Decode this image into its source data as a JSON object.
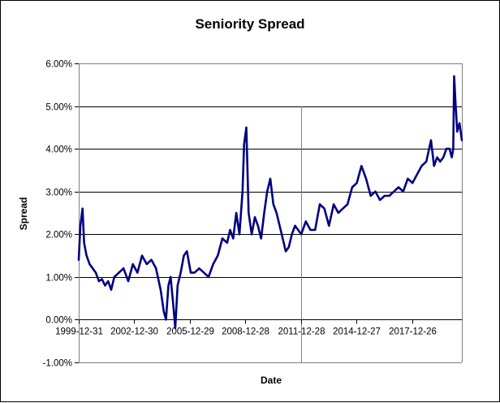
{
  "chart_data": {
    "type": "line",
    "title": "Seniority Spread",
    "xlabel": "Date",
    "ylabel": "Spread",
    "ylim": [
      -0.01,
      0.06
    ],
    "y_ticks": [
      -0.01,
      0,
      0.01,
      0.02,
      0.03,
      0.04,
      0.05,
      0.06
    ],
    "y_tick_labels": [
      "-1.00%",
      "0.00%",
      "1.00%",
      "2.00%",
      "3.00%",
      "4.00%",
      "5.00%",
      "6.00%"
    ],
    "x_tick_labels": [
      "1999-12-31",
      "2002-12-30",
      "2005-12-29",
      "2008-12-28",
      "2011-12-28",
      "2014-12-27",
      "2017-12-26"
    ],
    "x_tick_dates": [
      "1999-12-31",
      "2002-12-30",
      "2005-12-29",
      "2008-12-28",
      "2011-12-28",
      "2014-12-27",
      "2017-12-26"
    ],
    "xlim": [
      "1999-12-31",
      "2020-08-31"
    ],
    "grid": "horizontal",
    "legend": "none",
    "colors": {
      "line": "#000080",
      "grid": "#000000",
      "axis": "#808080"
    },
    "series": [
      {
        "x": [
          "1999-12-31",
          "2000-02-01",
          "2000-03-15",
          "2000-04-15",
          "2000-06-01",
          "2000-08-01",
          "2000-10-01",
          "2000-12-01",
          "2001-02-01",
          "2001-04-01",
          "2001-06-01",
          "2001-08-01",
          "2001-10-01",
          "2001-12-01",
          "2002-03-01",
          "2002-06-01",
          "2002-09-01",
          "2002-12-01",
          "2003-03-01",
          "2003-06-01",
          "2003-09-01",
          "2003-12-01",
          "2004-03-01",
          "2004-06-01",
          "2004-08-01",
          "2004-09-15",
          "2004-11-01",
          "2004-12-15",
          "2005-02-01",
          "2005-03-15",
          "2005-05-01",
          "2005-07-01",
          "2005-09-01",
          "2005-11-01",
          "2006-01-15",
          "2006-04-01",
          "2006-07-01",
          "2006-10-01",
          "2007-01-01",
          "2007-04-01",
          "2007-07-01",
          "2007-10-01",
          "2008-01-01",
          "2008-03-01",
          "2008-05-01",
          "2008-07-01",
          "2008-09-01",
          "2008-11-01",
          "2008-12-01",
          "2009-01-15",
          "2009-03-01",
          "2009-05-01",
          "2009-07-01",
          "2009-09-01",
          "2009-11-01",
          "2010-01-01",
          "2010-03-01",
          "2010-05-01",
          "2010-07-01",
          "2010-09-01",
          "2010-11-01",
          "2011-01-01",
          "2011-03-01",
          "2011-05-01",
          "2011-07-01",
          "2011-09-01",
          "2011-11-01",
          "2012-01-01",
          "2012-04-01",
          "2012-07-01",
          "2012-10-01",
          "2013-01-01",
          "2013-04-01",
          "2013-07-01",
          "2013-10-01",
          "2014-01-01",
          "2014-04-01",
          "2014-07-01",
          "2014-10-01",
          "2015-01-01",
          "2015-04-01",
          "2015-07-01",
          "2015-10-01",
          "2016-01-01",
          "2016-04-01",
          "2016-07-01",
          "2016-10-01",
          "2017-01-01",
          "2017-04-01",
          "2017-07-01",
          "2017-10-01",
          "2018-01-01",
          "2018-04-01",
          "2018-07-01",
          "2018-10-01",
          "2019-01-01",
          "2019-03-01",
          "2019-05-01",
          "2019-07-01",
          "2019-09-01",
          "2019-11-01",
          "2020-01-01",
          "2020-02-15",
          "2020-03-15",
          "2020-04-01",
          "2020-05-01",
          "2020-06-01",
          "2020-07-15",
          "2020-08-31"
        ],
        "y": [
          0.014,
          0.022,
          0.026,
          0.018,
          0.015,
          0.013,
          0.012,
          0.011,
          0.009,
          0.0095,
          0.008,
          0.009,
          0.007,
          0.01,
          0.011,
          0.012,
          0.009,
          0.013,
          0.011,
          0.015,
          0.013,
          0.014,
          0.012,
          0.007,
          0.002,
          0.0,
          0.008,
          0.01,
          0.004,
          -0.002,
          0.008,
          0.011,
          0.015,
          0.016,
          0.011,
          0.011,
          0.012,
          0.011,
          0.01,
          0.013,
          0.015,
          0.019,
          0.018,
          0.021,
          0.019,
          0.025,
          0.02,
          0.03,
          0.041,
          0.045,
          0.025,
          0.02,
          0.024,
          0.022,
          0.019,
          0.025,
          0.03,
          0.033,
          0.027,
          0.025,
          0.022,
          0.019,
          0.016,
          0.017,
          0.02,
          0.022,
          0.021,
          0.02,
          0.023,
          0.021,
          0.021,
          0.027,
          0.026,
          0.022,
          0.027,
          0.025,
          0.026,
          0.027,
          0.031,
          0.032,
          0.036,
          0.033,
          0.029,
          0.03,
          0.028,
          0.029,
          0.029,
          0.03,
          0.031,
          0.03,
          0.033,
          0.032,
          0.034,
          0.036,
          0.037,
          0.042,
          0.036,
          0.038,
          0.037,
          0.038,
          0.04,
          0.04,
          0.038,
          0.04,
          0.057,
          0.05,
          0.044,
          0.046,
          0.042
        ]
      }
    ]
  }
}
